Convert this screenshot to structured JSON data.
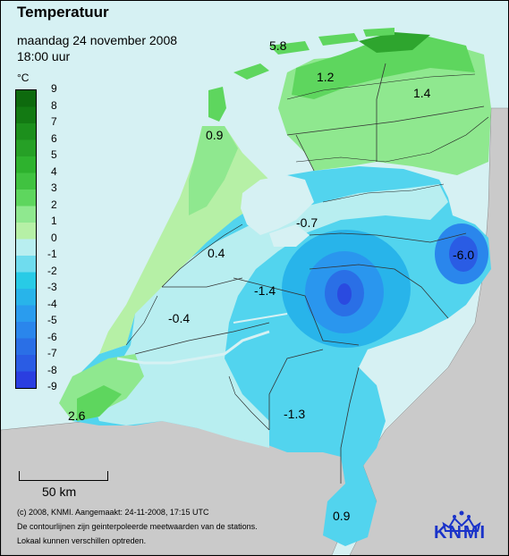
{
  "header": {
    "title": "Temperatuur",
    "date": "maandag 24 november 2008",
    "time": "18:00 uur"
  },
  "legend": {
    "unit": "°C",
    "ticks": [
      "9",
      "8",
      "7",
      "6",
      "5",
      "4",
      "3",
      "2",
      "1",
      "0",
      "-1",
      "-2",
      "-3",
      "-4",
      "-5",
      "-6",
      "-7",
      "-8",
      "-9"
    ],
    "colors": {
      "top_dark_green": "#0e6a0e",
      "green": "#2ea52e",
      "light_green": "#8fe88f",
      "pale_green": "#c2f3b2",
      "pale_cyan": "#b9f0f0",
      "cyan": "#28cbe6",
      "blue": "#2a86ec",
      "bottom_blue": "#2a3ee0"
    }
  },
  "map": {
    "labels": [
      "5.8",
      "1.2",
      "1.4",
      "0.9",
      "-0.7",
      "-6.0",
      "0.4",
      "-1.4",
      "-0.4",
      "2.6",
      "-1.3",
      "0.9"
    ]
  },
  "scale": {
    "label": "50 km"
  },
  "credits": {
    "line1": "(c) 2008, KNMI. Aangemaakt: 24-11-2008, 17:15 UTC",
    "line2": "De contourlijnen zijn geinterpoleerde meetwaarden van de stations.",
    "line3": "Lokaal kunnen verschillen optreden."
  },
  "brand": {
    "name": "KNMI"
  },
  "colors": {
    "sea": "#d6f1f3",
    "land_outside": "#cacaca",
    "knmi_blue": "#1a33c9"
  }
}
